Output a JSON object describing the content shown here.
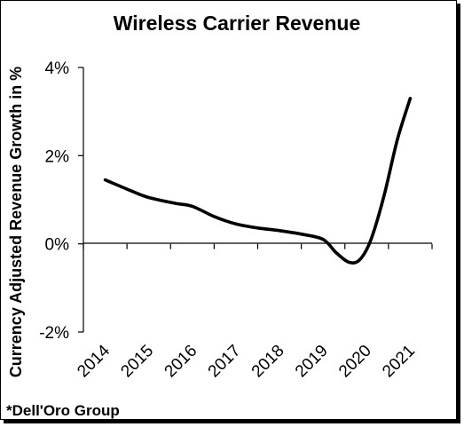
{
  "chart_data": {
    "type": "line",
    "title": "Wireless Carrier Revenue",
    "xlabel": "",
    "ylabel": "Currency Adjusted Revenue Growth in %",
    "x": [
      "2014",
      "2015",
      "2016",
      "2017",
      "2018",
      "2019",
      "2020",
      "2021"
    ],
    "series": [
      {
        "values": [
          1.45,
          1.05,
          0.85,
          0.45,
          0.3,
          0.1,
          -0.05,
          3.3
        ]
      }
    ],
    "curve_path": [
      [
        2014.0,
        1.45
      ],
      [
        2014.6,
        1.2
      ],
      [
        2015.0,
        1.05
      ],
      [
        2015.6,
        0.92
      ],
      [
        2016.0,
        0.85
      ],
      [
        2016.5,
        0.62
      ],
      [
        2017.0,
        0.45
      ],
      [
        2017.5,
        0.36
      ],
      [
        2018.0,
        0.3
      ],
      [
        2018.5,
        0.22
      ],
      [
        2019.0,
        0.1
      ],
      [
        2019.3,
        -0.2
      ],
      [
        2019.6,
        -0.42
      ],
      [
        2019.85,
        -0.35
      ],
      [
        2020.1,
        0.1
      ],
      [
        2020.4,
        1.1
      ],
      [
        2020.7,
        2.35
      ],
      [
        2021.0,
        3.3
      ]
    ],
    "ylim": [
      -2,
      4
    ],
    "yticks": [
      -2,
      0,
      2,
      4
    ],
    "ytick_labels": [
      "-2%",
      "0%",
      "2%",
      "4%"
    ],
    "line_color": "#000000",
    "grid": false,
    "legend": "none"
  },
  "footnote": "*Dell'Oro Group"
}
